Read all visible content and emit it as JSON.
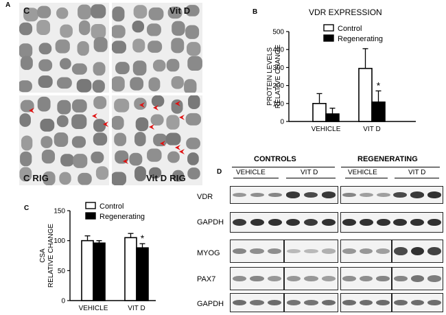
{
  "panels": {
    "a": "A",
    "b": "B",
    "c": "C",
    "d": "D"
  },
  "micrographs": [
    {
      "label": "C"
    },
    {
      "label": "Vit D"
    },
    {
      "label": "C RIG"
    },
    {
      "label": "Vit D RIG"
    }
  ],
  "chart_data": [
    {
      "type": "bar",
      "title": "VDR EXPRESSION",
      "ylabel": "PROTEIN LEVELS RELATIVE CHANGE",
      "ylabel_lines": [
        "PROTEIN LEVELS",
        "RELATIVE CHANGE"
      ],
      "categories": [
        "VEHICLE",
        "VIT D"
      ],
      "ylim": [
        0,
        500
      ],
      "yticks": [
        "0",
        "100",
        "200",
        "300",
        "400",
        "500"
      ],
      "series": [
        {
          "name": "Control",
          "values": [
            100,
            295
          ],
          "errors": [
            55,
            110
          ],
          "color": "#ffffff"
        },
        {
          "name": "Regenerating",
          "values": [
            42,
            108
          ],
          "errors": [
            32,
            62
          ],
          "color": "#000000"
        }
      ],
      "annotations": [
        {
          "text": "*",
          "category": "VIT D",
          "series": "Regenerating"
        }
      ],
      "legend": "top-right"
    },
    {
      "type": "bar",
      "title": "",
      "ylabel": "CSA RELATIVE CHANGE",
      "ylabel_lines": [
        "CSA",
        "RELATIVE CHANGE"
      ],
      "categories": [
        "VEHICLE",
        "VIT D"
      ],
      "ylim": [
        0,
        150
      ],
      "yticks": [
        "0",
        "50",
        "100",
        "150"
      ],
      "series": [
        {
          "name": "Control",
          "values": [
            100,
            105
          ],
          "errors": [
            8,
            7
          ],
          "color": "#ffffff"
        },
        {
          "name": "Regenerating",
          "values": [
            96,
            88
          ],
          "errors": [
            4,
            7
          ],
          "color": "#000000"
        }
      ],
      "annotations": [
        {
          "text": "*",
          "category": "VIT D",
          "series": "Regenerating"
        }
      ],
      "legend": "top-right"
    }
  ],
  "western": {
    "groups": [
      "CONTROLS",
      "REGENERATING"
    ],
    "subgroups": [
      "VEHICLE",
      "VIT D",
      "VEHICLE",
      "VIT D"
    ],
    "rows": [
      "VDR",
      "GAPDH",
      "MYOG",
      "PAX7",
      "GAPDH"
    ]
  }
}
